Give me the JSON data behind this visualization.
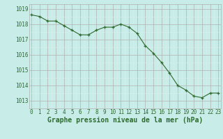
{
  "x": [
    0,
    1,
    2,
    3,
    4,
    5,
    6,
    7,
    8,
    9,
    10,
    11,
    12,
    13,
    14,
    15,
    16,
    17,
    18,
    19,
    20,
    21,
    22,
    23
  ],
  "y": [
    1018.6,
    1018.5,
    1018.2,
    1018.2,
    1017.9,
    1017.6,
    1017.3,
    1017.3,
    1017.6,
    1017.8,
    1017.8,
    1018.0,
    1017.8,
    1017.4,
    1016.6,
    1016.1,
    1015.5,
    1014.8,
    1014.0,
    1013.7,
    1013.3,
    1013.2,
    1013.5,
    1013.5
  ],
  "line_color": "#2d6a2d",
  "marker": "+",
  "bg_color": "#c8ece8",
  "grid_major_color": "#b0b0b0",
  "grid_minor_color": "#daf0ec",
  "xlabel": "Graphe pression niveau de la mer (hPa)",
  "xlabel_fontsize": 7,
  "xlabel_color": "#2d6a2d",
  "ytick_labels": [
    1013,
    1014,
    1015,
    1016,
    1017,
    1018,
    1019
  ],
  "xtick_labels": [
    0,
    1,
    2,
    3,
    4,
    5,
    6,
    7,
    8,
    9,
    10,
    11,
    12,
    13,
    14,
    15,
    16,
    17,
    18,
    19,
    20,
    21,
    22,
    23
  ],
  "ylim": [
    1012.5,
    1019.3
  ],
  "xlim": [
    -0.3,
    23.3
  ],
  "tick_fontsize": 5.5,
  "tick_color": "#2d6a2d"
}
